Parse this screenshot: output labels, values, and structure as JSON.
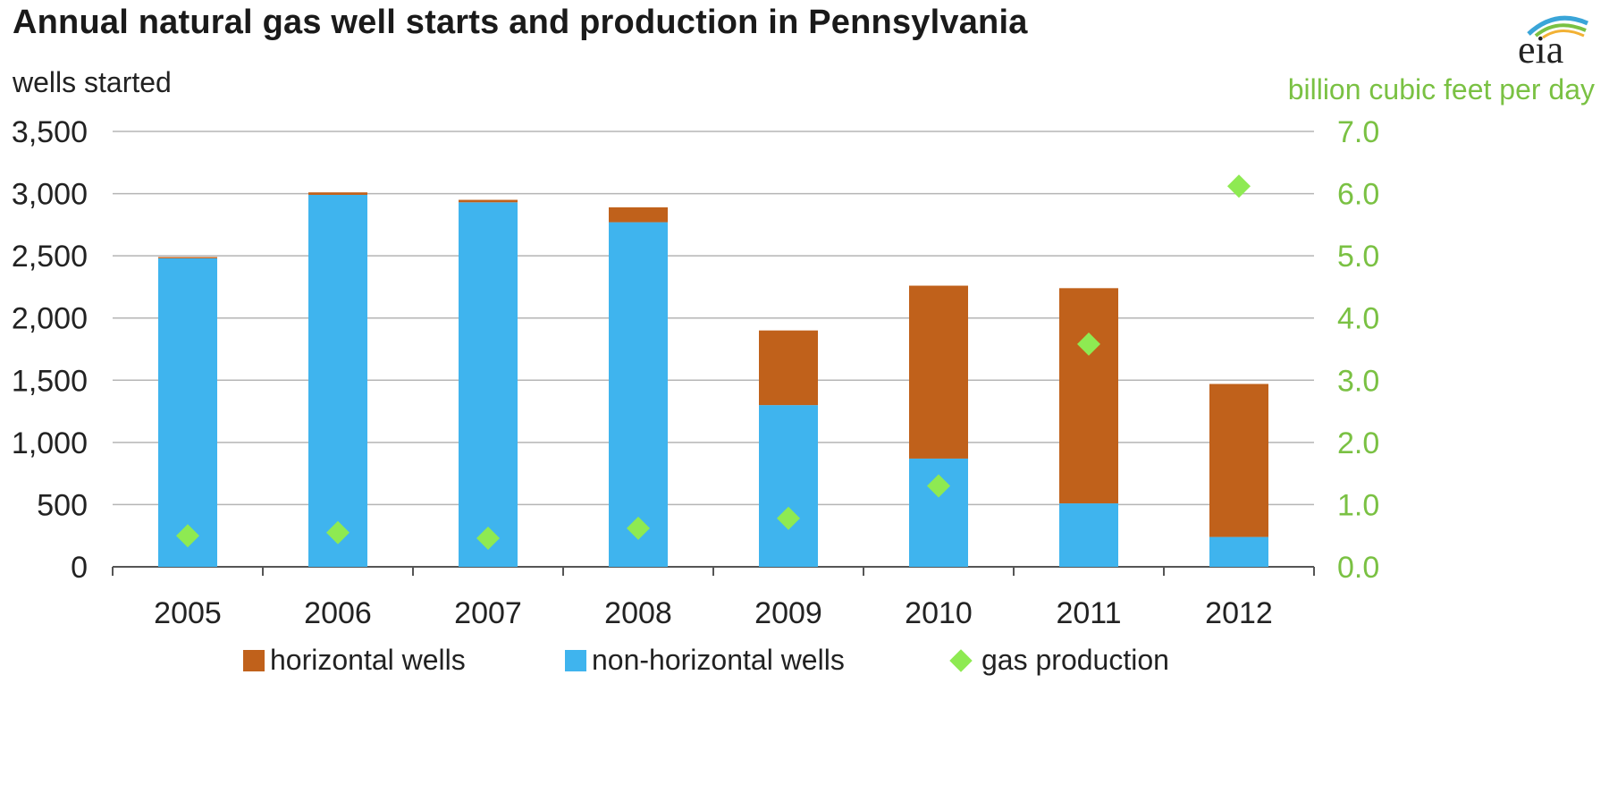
{
  "title": "Annual natural gas well starts and production in Pennsylvania",
  "logo_text": "eia",
  "colors": {
    "horizontal": "#c0611b",
    "non_horizontal": "#3fb4ee",
    "gas_production": "#8eea52",
    "right_axis": "#7ac143",
    "grid": "#b5b5b5"
  },
  "chart_data": {
    "type": "bar",
    "stacked": true,
    "title": "Annual natural gas well starts and production in Pennsylvania",
    "ylabel": "wells started",
    "y2label": "billion cubic feet per day",
    "categories": [
      "2005",
      "2006",
      "2007",
      "2008",
      "2009",
      "2010",
      "2011",
      "2012"
    ],
    "ylim": [
      0,
      3500
    ],
    "y2lim": [
      0,
      7
    ],
    "yticks": [
      "0",
      "500",
      "1,000",
      "1,500",
      "2,000",
      "2,500",
      "3,000",
      "3,500"
    ],
    "y2ticks": [
      "0.0",
      "1.0",
      "2.0",
      "3.0",
      "4.0",
      "5.0",
      "6.0",
      "7.0"
    ],
    "series": [
      {
        "name": "non-horizontal wells",
        "axis": "left",
        "type": "bar",
        "values": [
          2480,
          2990,
          2930,
          2770,
          1300,
          870,
          510,
          240
        ]
      },
      {
        "name": "horizontal wells",
        "axis": "left",
        "type": "bar",
        "values": [
          10,
          20,
          20,
          120,
          600,
          1390,
          1730,
          1230
        ]
      },
      {
        "name": "gas production",
        "axis": "right",
        "type": "scatter",
        "values": [
          0.5,
          0.55,
          0.46,
          0.62,
          0.78,
          1.3,
          3.58,
          6.12
        ]
      }
    ],
    "legend": [
      "horizontal wells",
      "non-horizontal wells",
      "gas production"
    ],
    "legend_position": "bottom"
  }
}
